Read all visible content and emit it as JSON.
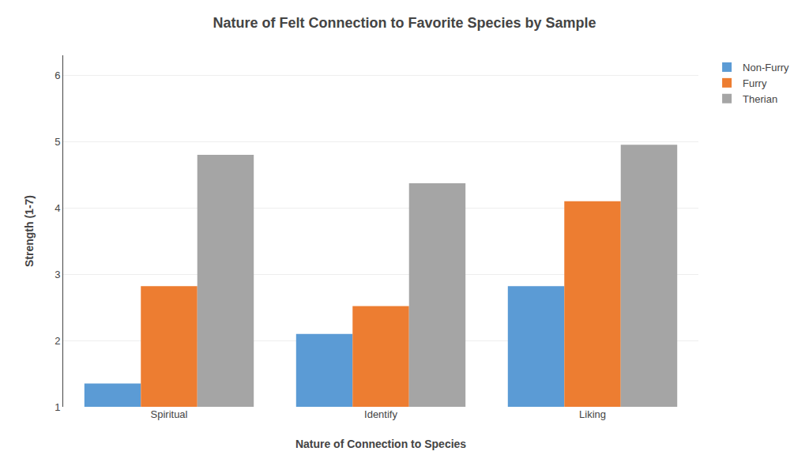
{
  "chart_data": {
    "type": "bar",
    "title": "Nature of Felt Connection to Favorite Species by Sample",
    "xlabel": "Nature of Connection to Species",
    "ylabel": "Strength (1-7)",
    "categories": [
      "Spiritual",
      "Identify",
      "Liking"
    ],
    "series": [
      {
        "name": "Non-Furry",
        "color": "#5B9BD5",
        "values": [
          1.35,
          2.1,
          2.82
        ]
      },
      {
        "name": "Furry",
        "color": "#ED7D31",
        "values": [
          2.82,
          2.52,
          4.1
        ]
      },
      {
        "name": "Therian",
        "color": "#A5A5A5",
        "values": [
          4.8,
          4.37,
          4.95
        ]
      }
    ],
    "ylim": [
      1,
      6.3
    ],
    "yticks": [
      1,
      2,
      3,
      4,
      5,
      6
    ],
    "grid": true,
    "legend": "right"
  }
}
